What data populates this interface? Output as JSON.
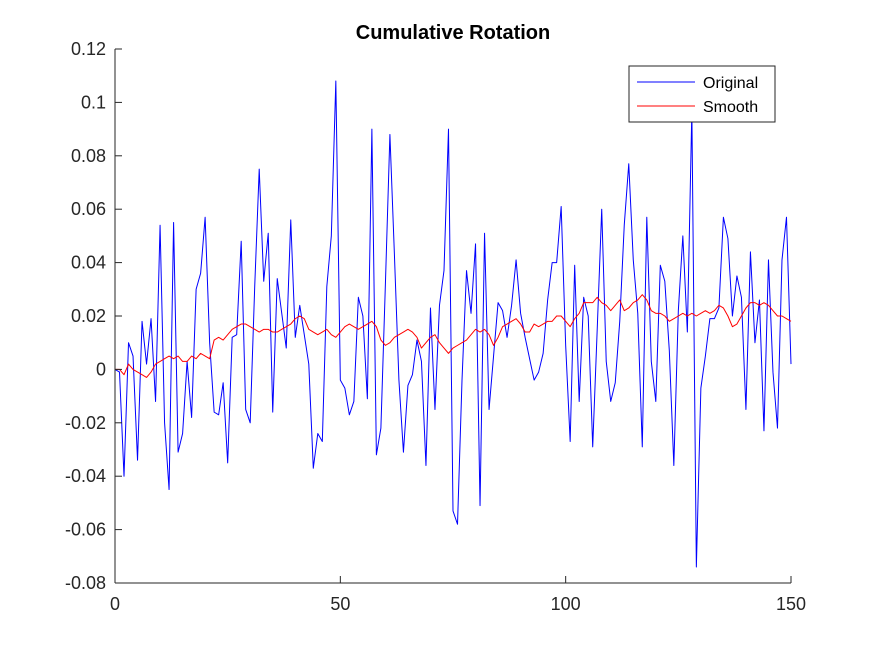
{
  "chart_data": {
    "type": "line",
    "title": "Cumulative Rotation",
    "xlabel": "",
    "ylabel": "",
    "xlim": [
      0,
      150
    ],
    "ylim": [
      -0.08,
      0.12
    ],
    "x_ticks": [
      0,
      50,
      100,
      150
    ],
    "x_tick_labels": [
      "0",
      "50",
      "100",
      "150"
    ],
    "y_ticks": [
      -0.08,
      -0.06,
      -0.04,
      -0.02,
      0,
      0.02,
      0.04,
      0.06,
      0.08,
      0.1,
      0.12
    ],
    "y_tick_labels": [
      "-0.08",
      "-0.06",
      "-0.04",
      "-0.02",
      "0",
      "0.02",
      "0.04",
      "0.06",
      "0.08",
      "0.1",
      "0.12"
    ],
    "grid": false,
    "legend_position": "top-right",
    "series": [
      {
        "name": "Original",
        "color": "#0000ff",
        "x": [
          0,
          1,
          2,
          3,
          4,
          5,
          6,
          7,
          8,
          9,
          10,
          11,
          12,
          13,
          14,
          15,
          16,
          17,
          18,
          19,
          20,
          21,
          22,
          23,
          24,
          25,
          26,
          27,
          28,
          29,
          30,
          31,
          32,
          33,
          34,
          35,
          36,
          37,
          38,
          39,
          40,
          41,
          42,
          43,
          44,
          45,
          46,
          47,
          48,
          49,
          50,
          51,
          52,
          53,
          54,
          55,
          56,
          57,
          58,
          59,
          60,
          61,
          62,
          63,
          64,
          65,
          66,
          67,
          68,
          69,
          70,
          71,
          72,
          73,
          74,
          75,
          76,
          77,
          78,
          79,
          80,
          81,
          82,
          83,
          84,
          85,
          86,
          87,
          88,
          89,
          90,
          91,
          92,
          93,
          94,
          95,
          96,
          97,
          98,
          99,
          100,
          101,
          102,
          103,
          104,
          105,
          106,
          107,
          108,
          109,
          110,
          111,
          112,
          113,
          114,
          115,
          116,
          117,
          118,
          119,
          120,
          121,
          122,
          123,
          124,
          125,
          126,
          127,
          128,
          129,
          130,
          131,
          132,
          133,
          134,
          135,
          136,
          137,
          138,
          139,
          140,
          141,
          142,
          143,
          144,
          145,
          146,
          147,
          148,
          149,
          150
        ],
        "values": [
          0,
          -0.001,
          -0.04,
          0.01,
          0.005,
          -0.034,
          0.018,
          0.002,
          0.019,
          -0.012,
          0.054,
          -0.02,
          -0.045,
          0.055,
          -0.031,
          -0.024,
          0.003,
          -0.018,
          0.03,
          0.036,
          0.057,
          0.01,
          -0.016,
          -0.017,
          -0.005,
          -0.035,
          0.012,
          0.013,
          0.048,
          -0.015,
          -0.02,
          0.031,
          0.075,
          0.033,
          0.051,
          -0.016,
          0.034,
          0.021,
          0.008,
          0.056,
          0.012,
          0.024,
          0.013,
          0.002,
          -0.037,
          -0.024,
          -0.027,
          0.031,
          0.05,
          0.108,
          -0.004,
          -0.007,
          -0.017,
          -0.012,
          0.027,
          0.02,
          -0.011,
          0.09,
          -0.032,
          -0.022,
          0.032,
          0.088,
          0.043,
          -0.004,
          -0.031,
          -0.006,
          -0.002,
          0.011,
          0.003,
          -0.036,
          0.023,
          -0.015,
          0.024,
          0.037,
          0.09,
          -0.053,
          -0.058,
          -0.004,
          0.037,
          0.021,
          0.047,
          -0.051,
          0.051,
          -0.015,
          0.005,
          0.025,
          0.022,
          0.012,
          0.024,
          0.041,
          0.021,
          0.012,
          0.004,
          -0.004,
          -0.001,
          0.006,
          0.026,
          0.04,
          0.04,
          0.061,
          0.009,
          -0.027,
          0.039,
          -0.012,
          0.027,
          0.02,
          -0.029,
          0.015,
          0.06,
          0.003,
          -0.012,
          -0.005,
          0.018,
          0.054,
          0.077,
          0.041,
          0.021,
          -0.029,
          0.057,
          0.003,
          -0.012,
          0.039,
          0.033,
          0.007,
          -0.036,
          0.022,
          0.05,
          0.014,
          0.097,
          -0.074,
          -0.007,
          0.005,
          0.019,
          0.019,
          0.023,
          0.057,
          0.049,
          0.02,
          0.035,
          0.027,
          -0.015,
          0.044,
          0.01,
          0.026,
          -0.023,
          0.041,
          -0.001,
          -0.022,
          0.041,
          0.057,
          0.002
        ]
      },
      {
        "name": "Smooth",
        "color": "#ff0000",
        "x": [
          0,
          1,
          2,
          3,
          4,
          5,
          6,
          7,
          8,
          9,
          10,
          11,
          12,
          13,
          14,
          15,
          16,
          17,
          18,
          19,
          20,
          21,
          22,
          23,
          24,
          25,
          26,
          27,
          28,
          29,
          30,
          31,
          32,
          33,
          34,
          35,
          36,
          37,
          38,
          39,
          40,
          41,
          42,
          43,
          44,
          45,
          46,
          47,
          48,
          49,
          50,
          51,
          52,
          53,
          54,
          55,
          56,
          57,
          58,
          59,
          60,
          61,
          62,
          63,
          64,
          65,
          66,
          67,
          68,
          69,
          70,
          71,
          72,
          73,
          74,
          75,
          76,
          77,
          78,
          79,
          80,
          81,
          82,
          83,
          84,
          85,
          86,
          87,
          88,
          89,
          90,
          91,
          92,
          93,
          94,
          95,
          96,
          97,
          98,
          99,
          100,
          101,
          102,
          103,
          104,
          105,
          106,
          107,
          108,
          109,
          110,
          111,
          112,
          113,
          114,
          115,
          116,
          117,
          118,
          119,
          120,
          121,
          122,
          123,
          124,
          125,
          126,
          127,
          128,
          129,
          130,
          131,
          132,
          133,
          134,
          135,
          136,
          137,
          138,
          139,
          140,
          141,
          142,
          143,
          144,
          145,
          146,
          147,
          148,
          149,
          150
        ],
        "values": [
          0,
          0,
          -0.002,
          0.002,
          0,
          -0.001,
          -0.002,
          -0.003,
          -0.001,
          0.002,
          0.003,
          0.004,
          0.005,
          0.004,
          0.005,
          0.003,
          0.003,
          0.005,
          0.004,
          0.006,
          0.005,
          0.004,
          0.011,
          0.012,
          0.011,
          0.013,
          0.015,
          0.016,
          0.017,
          0.017,
          0.016,
          0.015,
          0.014,
          0.015,
          0.015,
          0.014,
          0.014,
          0.015,
          0.016,
          0.017,
          0.019,
          0.02,
          0.019,
          0.015,
          0.014,
          0.013,
          0.014,
          0.015,
          0.013,
          0.012,
          0.014,
          0.016,
          0.017,
          0.016,
          0.015,
          0.016,
          0.017,
          0.018,
          0.016,
          0.011,
          0.009,
          0.01,
          0.012,
          0.013,
          0.014,
          0.015,
          0.014,
          0.012,
          0.008,
          0.01,
          0.012,
          0.013,
          0.01,
          0.008,
          0.006,
          0.008,
          0.009,
          0.01,
          0.011,
          0.013,
          0.015,
          0.014,
          0.015,
          0.013,
          0.009,
          0.012,
          0.016,
          0.017,
          0.018,
          0.019,
          0.017,
          0.014,
          0.014,
          0.017,
          0.016,
          0.017,
          0.018,
          0.018,
          0.02,
          0.02,
          0.018,
          0.016,
          0.019,
          0.021,
          0.025,
          0.025,
          0.025,
          0.027,
          0.025,
          0.024,
          0.022,
          0.024,
          0.026,
          0.022,
          0.023,
          0.025,
          0.026,
          0.028,
          0.026,
          0.022,
          0.021,
          0.021,
          0.02,
          0.018,
          0.019,
          0.02,
          0.021,
          0.02,
          0.021,
          0.02,
          0.021,
          0.022,
          0.021,
          0.022,
          0.024,
          0.023,
          0.02,
          0.016,
          0.017,
          0.02,
          0.023,
          0.025,
          0.025,
          0.024,
          0.025,
          0.024,
          0.022,
          0.02,
          0.02,
          0.019,
          0.018
        ]
      }
    ]
  }
}
